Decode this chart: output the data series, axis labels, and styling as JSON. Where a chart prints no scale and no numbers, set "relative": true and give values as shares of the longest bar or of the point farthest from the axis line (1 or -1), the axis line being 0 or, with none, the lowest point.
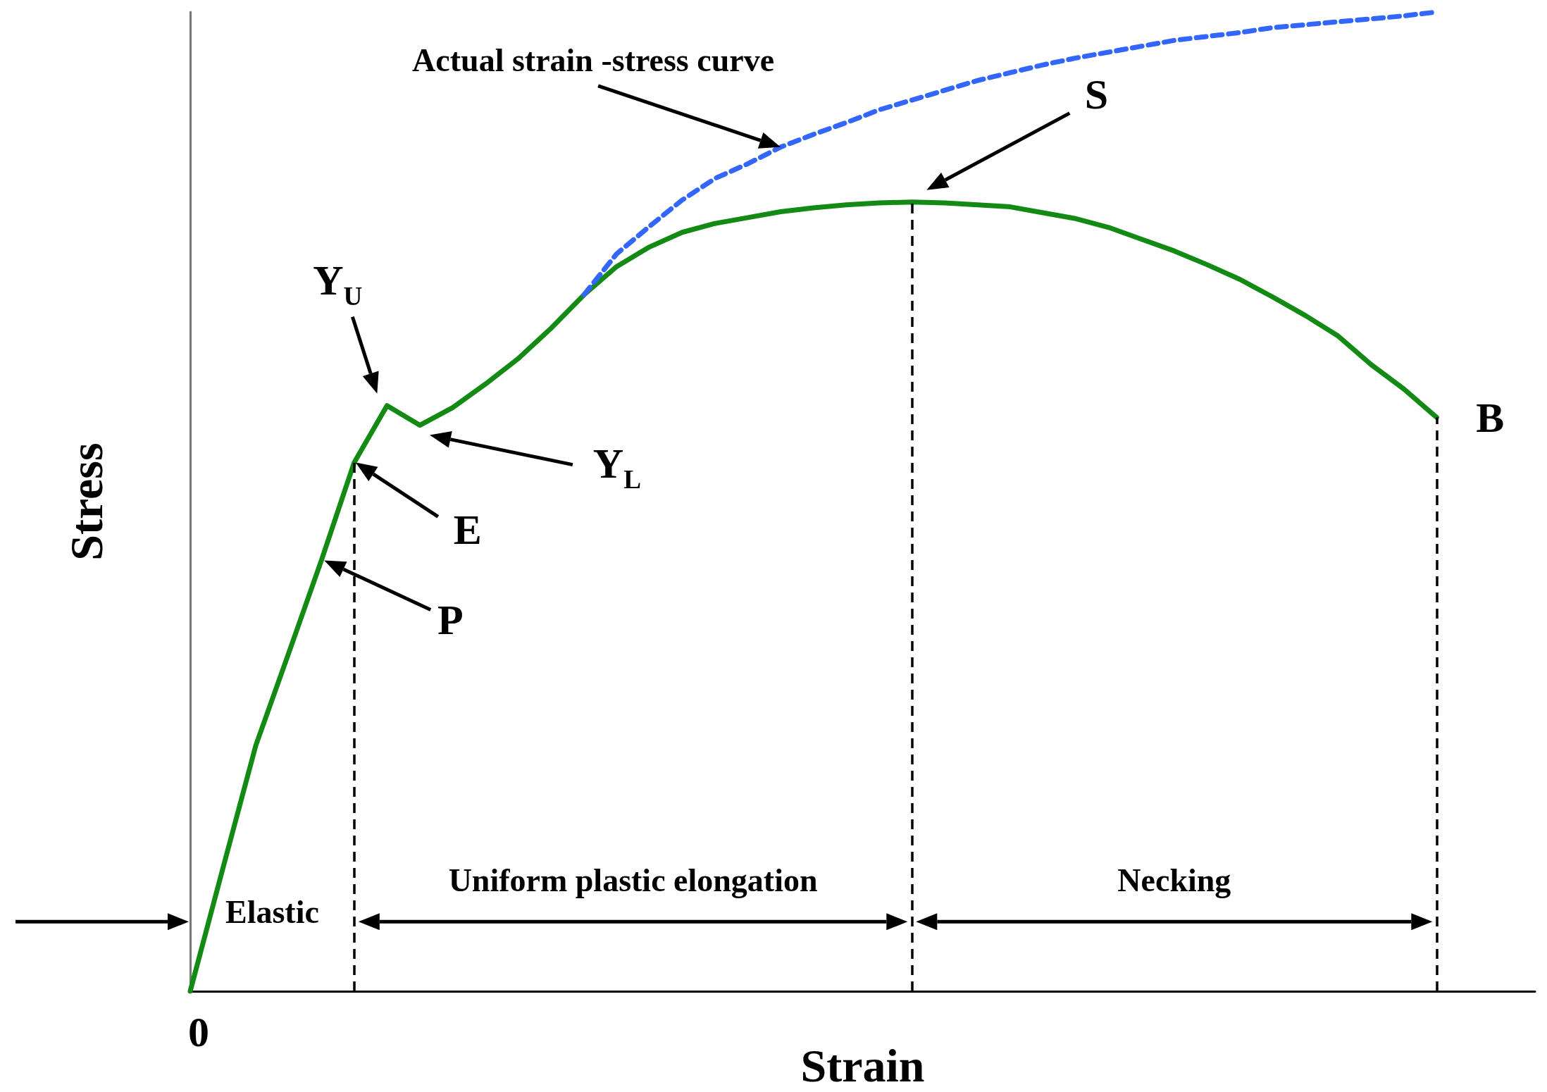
{
  "chart_data": {
    "type": "line",
    "relative": true,
    "xlabel": "Strain",
    "ylabel": "Stress",
    "categories": [
      null,
      null,
      null,
      null,
      null,
      null,
      null,
      null,
      null,
      null,
      null,
      null,
      null,
      null,
      null,
      null,
      null,
      null,
      null,
      null,
      null,
      null,
      null,
      null,
      null,
      null,
      null,
      null,
      null,
      null,
      null,
      null,
      null,
      null,
      null,
      null,
      null,
      null,
      null,
      null,
      null,
      null
    ],
    "series": [
      {
        "color": "#138a13",
        "line_style": "solid",
        "values": [
          0,
          0.126,
          0.251,
          0.345,
          0.44,
          0.54,
          0.598,
          0.578,
          0.596,
          0.62,
          0.646,
          0.677,
          0.711,
          0.74,
          0.76,
          0.775,
          0.784,
          0.79,
          0.796,
          0.8,
          0.803,
          0.805,
          0.806,
          0.805,
          0.803,
          0.801,
          0.795,
          0.789,
          0.78,
          0.768,
          0.756,
          0.742,
          0.727,
          0.709,
          0.69,
          0.669,
          0.64,
          0.615,
          0.586,
          null,
          null,
          null
        ]
      },
      {
        "color": "#3366ff",
        "line_style": "dashed",
        "values": [
          null,
          null,
          null,
          null,
          null,
          null,
          null,
          null,
          null,
          null,
          null,
          null,
          0.711,
          0.753,
          0.781,
          0.808,
          0.83,
          0.845,
          0.862,
          0.875,
          0.887,
          0.9,
          0.91,
          0.92,
          0.93,
          0.938,
          0.946,
          0.953,
          0.959,
          0.965,
          0.971,
          0.975,
          0.979,
          0.984,
          0.987,
          0.99,
          0.993,
          0.996,
          1.0,
          null,
          null,
          null
        ]
      }
    ],
    "annotations": [
      "Actual strain -stress curve",
      "S",
      "Y$_{U}$",
      "Y$_{L}$",
      "E",
      "P",
      "B",
      "Elastic",
      "Uniform plastic elongation",
      "Necking",
      "0"
    ]
  }
}
